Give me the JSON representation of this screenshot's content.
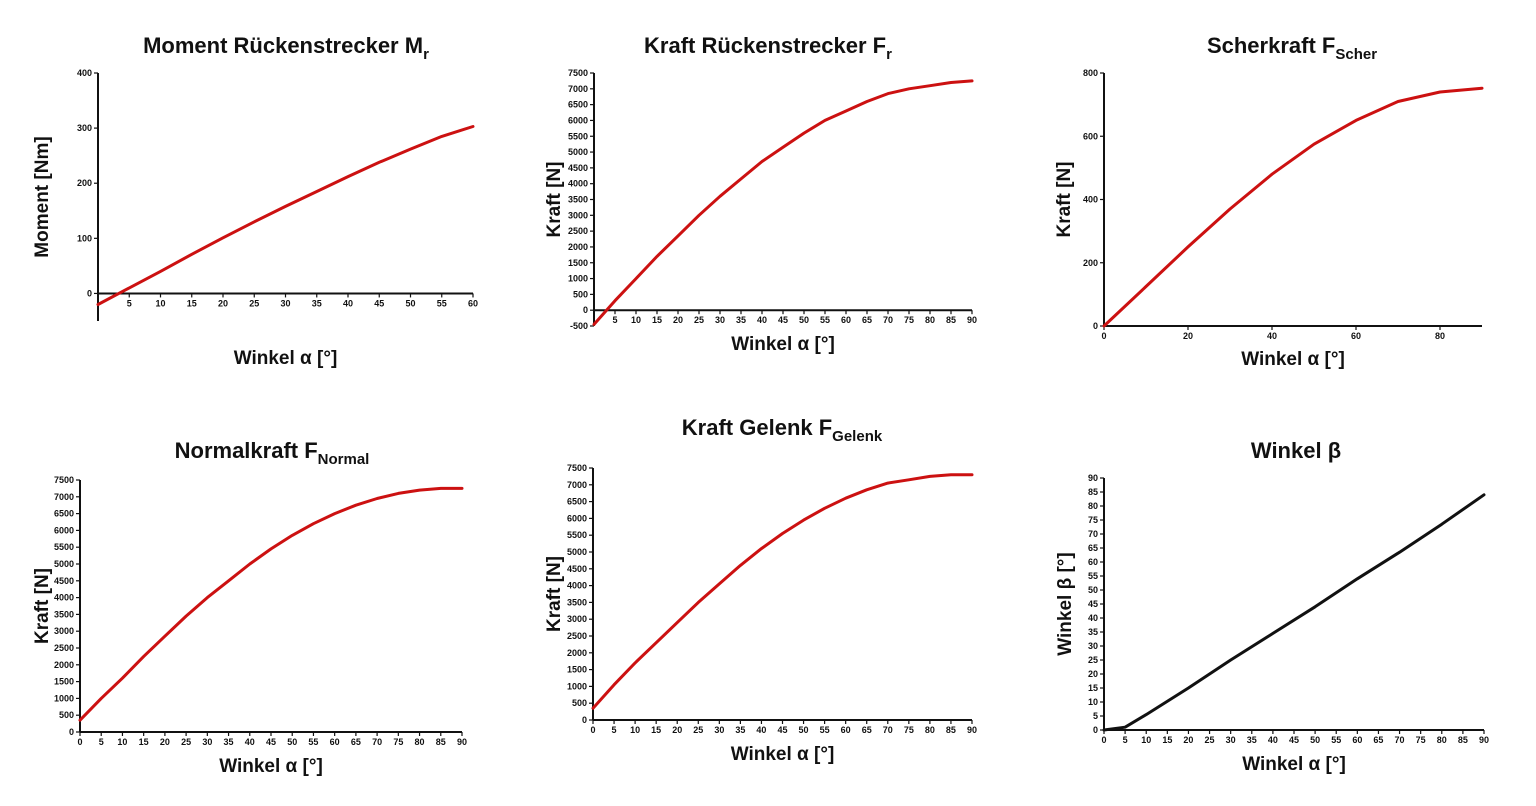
{
  "chart_data": [
    {
      "type": "line",
      "title": "Moment  Rückenstrecker M",
      "title_sub": "r",
      "xlabel": "Winkel α [°]",
      "ylabel": "Moment [Nm]",
      "xlim": [
        0,
        60
      ],
      "ylim": [
        -50,
        400
      ],
      "xticks": [
        5,
        10,
        15,
        20,
        25,
        30,
        35,
        40,
        45,
        50,
        55,
        60
      ],
      "yticks": [
        0,
        100,
        200,
        300,
        400
      ],
      "series": [
        {
          "color": "#cc1111",
          "x": [
            0,
            5,
            10,
            15,
            20,
            25,
            30,
            35,
            40,
            45,
            50,
            55,
            60
          ],
          "y": [
            -20,
            10,
            40,
            71,
            101,
            130,
            158,
            185,
            212,
            238,
            262,
            285,
            303
          ]
        }
      ]
    },
    {
      "type": "line",
      "title": "Kraft  Rückenstrecker F",
      "title_sub": "r",
      "xlabel": "Winkel α [°]",
      "ylabel": "Kraft [N]",
      "xlim": [
        0,
        90
      ],
      "ylim": [
        -500,
        7500
      ],
      "xticks": [
        5,
        10,
        15,
        20,
        25,
        30,
        35,
        40,
        45,
        50,
        55,
        60,
        65,
        70,
        75,
        80,
        85,
        90
      ],
      "yticks": [
        -500,
        0,
        500,
        1000,
        1500,
        2000,
        2500,
        3000,
        3500,
        4000,
        4500,
        5000,
        5500,
        6000,
        6500,
        7000,
        7500
      ],
      "series": [
        {
          "color": "#cc1111",
          "x": [
            0,
            5,
            10,
            15,
            20,
            25,
            30,
            35,
            40,
            45,
            50,
            55,
            60,
            65,
            70,
            75,
            80,
            85,
            90
          ],
          "y": [
            -450,
            300,
            1000,
            1700,
            2350,
            3000,
            3600,
            4150,
            4700,
            5150,
            5600,
            6000,
            6300,
            6600,
            6850,
            7000,
            7100,
            7200,
            7250
          ]
        }
      ]
    },
    {
      "type": "line",
      "title": "Scherkraft F",
      "title_sub": "Scher",
      "xlabel": "Winkel α [°]",
      "ylabel": "Kraft [N]",
      "xlim": [
        0,
        90
      ],
      "ylim": [
        0,
        800
      ],
      "xticks": [
        0,
        20,
        40,
        60,
        80
      ],
      "yticks": [
        0,
        200,
        400,
        600,
        800
      ],
      "series": [
        {
          "color": "#cc1111",
          "x": [
            0,
            10,
            20,
            30,
            40,
            50,
            60,
            70,
            80,
            90
          ],
          "y": [
            0,
            125,
            250,
            370,
            480,
            575,
            650,
            710,
            740,
            752
          ]
        }
      ]
    },
    {
      "type": "line",
      "title": "Normalkraft F",
      "title_sub": "Normal",
      "xlabel": "Winkel α [°]",
      "ylabel": "Kraft [N]",
      "xlim": [
        0,
        90
      ],
      "ylim": [
        0,
        7500
      ],
      "xticks": [
        0,
        5,
        10,
        15,
        20,
        25,
        30,
        35,
        40,
        45,
        50,
        55,
        60,
        65,
        70,
        75,
        80,
        85,
        90
      ],
      "yticks": [
        0,
        500,
        1000,
        1500,
        2000,
        2500,
        3000,
        3500,
        4000,
        4500,
        5000,
        5500,
        6000,
        6500,
        7000,
        7500
      ],
      "series": [
        {
          "color": "#cc1111",
          "x": [
            0,
            5,
            10,
            15,
            20,
            25,
            30,
            35,
            40,
            45,
            50,
            55,
            60,
            65,
            70,
            75,
            80,
            85,
            90
          ],
          "y": [
            350,
            1000,
            1600,
            2250,
            2850,
            3450,
            4000,
            4500,
            5000,
            5450,
            5850,
            6200,
            6500,
            6750,
            6950,
            7100,
            7200,
            7250,
            7250
          ]
        }
      ]
    },
    {
      "type": "line",
      "title": "Kraft  Gelenk F",
      "title_sub": "Gelenk",
      "xlabel": "Winkel α [°]",
      "ylabel": "Kraft [N]",
      "xlim": [
        0,
        90
      ],
      "ylim": [
        0,
        7500
      ],
      "xticks": [
        0,
        5,
        10,
        15,
        20,
        25,
        30,
        35,
        40,
        45,
        50,
        55,
        60,
        65,
        70,
        75,
        80,
        85,
        90
      ],
      "yticks": [
        0,
        500,
        1000,
        1500,
        2000,
        2500,
        3000,
        3500,
        4000,
        4500,
        5000,
        5500,
        6000,
        6500,
        7000,
        7500
      ],
      "series": [
        {
          "color": "#cc1111",
          "x": [
            0,
            5,
            10,
            15,
            20,
            25,
            30,
            35,
            40,
            45,
            50,
            55,
            60,
            65,
            70,
            75,
            80,
            85,
            90
          ],
          "y": [
            350,
            1050,
            1700,
            2300,
            2900,
            3500,
            4050,
            4600,
            5100,
            5550,
            5950,
            6300,
            6600,
            6850,
            7050,
            7150,
            7250,
            7300,
            7300
          ]
        }
      ]
    },
    {
      "type": "line",
      "title": "Winkel β",
      "title_sub": "",
      "xlabel": "Winkel α [°]",
      "ylabel": "Winkel β [°]",
      "xlim": [
        0,
        90
      ],
      "ylim": [
        0,
        90
      ],
      "xticks": [
        0,
        5,
        10,
        15,
        20,
        25,
        30,
        35,
        40,
        45,
        50,
        55,
        60,
        65,
        70,
        75,
        80,
        85,
        90
      ],
      "yticks": [
        0,
        5,
        10,
        15,
        20,
        25,
        30,
        35,
        40,
        45,
        50,
        55,
        60,
        65,
        70,
        75,
        80,
        85,
        90
      ],
      "series": [
        {
          "color": "#111111",
          "x": [
            0,
            5,
            10,
            20,
            30,
            40,
            50,
            60,
            70,
            80,
            90
          ],
          "y": [
            0,
            1,
            5.5,
            15,
            25,
            34.5,
            44,
            54,
            63.5,
            73.5,
            84
          ]
        }
      ]
    }
  ]
}
